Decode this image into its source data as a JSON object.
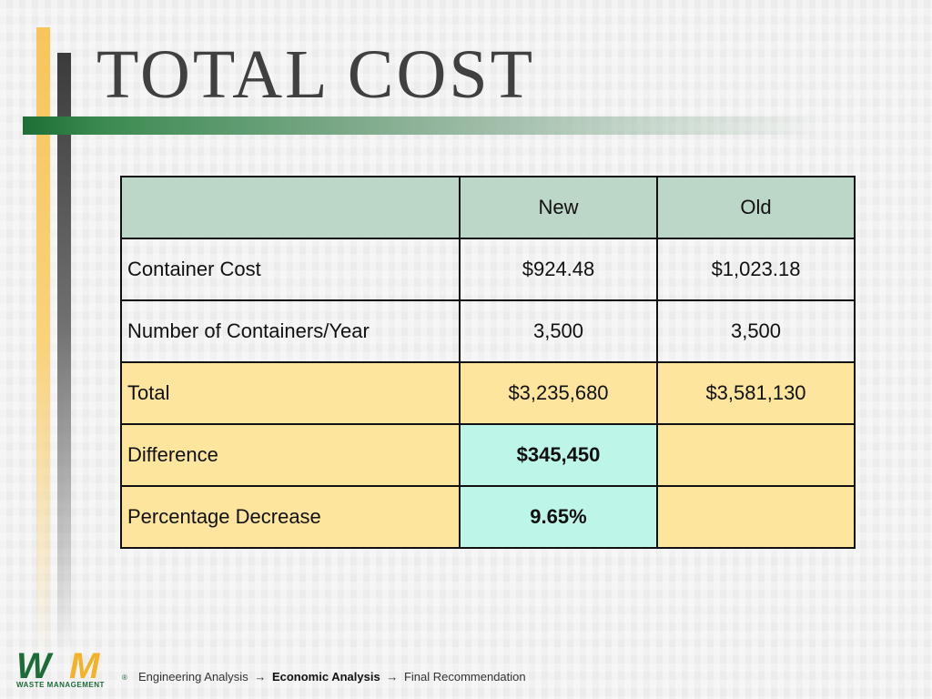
{
  "slide": {
    "title": "TOTAL COST"
  },
  "table": {
    "header": [
      "",
      "New",
      "Old"
    ],
    "rows": [
      [
        "Container Cost",
        "$924.48",
        "$1,023.18"
      ],
      [
        "Number of Containers/Year",
        "3,500",
        "3,500"
      ],
      [
        "Total",
        "$3,235,680",
        "$3,581,130"
      ],
      [
        "Difference",
        "$345,450",
        ""
      ],
      [
        "Percentage Decrease",
        "9.65%",
        ""
      ]
    ]
  },
  "footer": {
    "logo_letters_1": "W",
    "logo_letters_2": "M",
    "logo_text": "WASTE MANAGEMENT",
    "registered_mark": "®",
    "breadcrumbs": [
      "Engineering Analysis",
      "Economic Analysis",
      "Final Recommendation"
    ],
    "arrow": "→"
  },
  "colors": {
    "header_fill": "#bcd6c8",
    "total_rows_fill": "#fde59e",
    "highlight_fill": "#bdf5e8",
    "brand_green": "#1e6b3a",
    "brand_gold": "#f2b32b"
  }
}
